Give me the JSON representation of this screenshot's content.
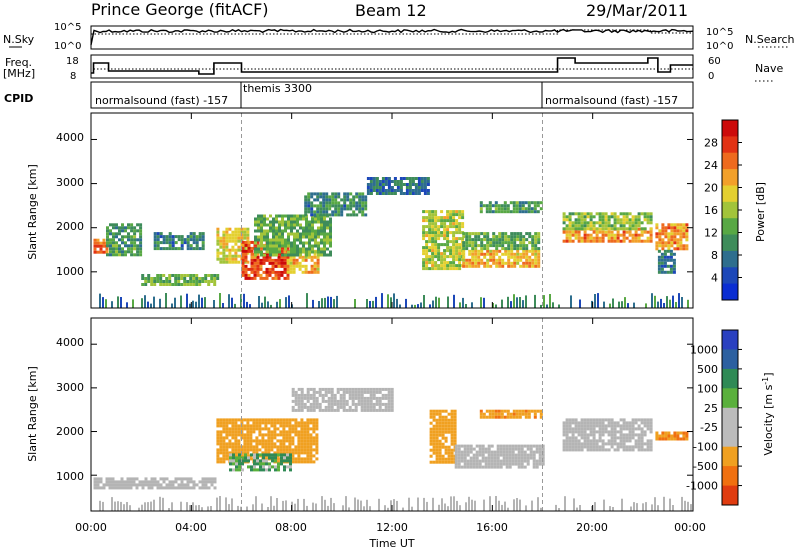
{
  "header": {
    "station": "Prince George (fitACF)",
    "beam": "Beam 12",
    "date": "29/Mar/2011"
  },
  "noise_panel": {
    "left_label": "N.Sky",
    "left_ticks": [
      "10^5",
      "10^0"
    ],
    "right_label": "N.Search",
    "right_ticks": [
      "10^5",
      "10^0"
    ]
  },
  "freq_panel": {
    "left_label_line1": "Freq.",
    "left_label_line2": "[MHz]",
    "left_ticks": [
      "18",
      "8"
    ],
    "right_label": "Nave",
    "right_ticks": [
      "60",
      "0"
    ]
  },
  "cpid_panel": {
    "label": "CPID",
    "segments": [
      {
        "name": "normalsound (fast) -157",
        "start_hour": 0.0
      },
      {
        "name": "themis 3300",
        "start_hour": 6.0
      },
      {
        "name": "normalsound (fast) -157",
        "start_hour": 18.0
      }
    ]
  },
  "power_panel": {
    "ylabel": "Slant Range [km]",
    "yticks": [
      "4000",
      "3000",
      "2000",
      "1000"
    ],
    "colorbar_label": "Power [dB]",
    "colorbar_ticks": [
      "28",
      "24",
      "20",
      "16",
      "12",
      "8",
      "4"
    ]
  },
  "velocity_panel": {
    "ylabel": "Slant Range [km]",
    "yticks": [
      "4000",
      "3000",
      "2000",
      "1000"
    ],
    "colorbar_label": "Velocity [m s^-1]",
    "colorbar_ticks": [
      "1000",
      "500",
      "100",
      "25",
      "-25",
      "-100",
      "-500",
      "-1000"
    ]
  },
  "xaxis": {
    "label": "Time UT",
    "ticks": [
      "00:00",
      "04:00",
      "08:00",
      "12:00",
      "16:00",
      "20:00",
      "00:00"
    ]
  },
  "colors": {
    "power_scale": [
      "#0a2dd2",
      "#1c47b8",
      "#2e6e8e",
      "#3e8c5a",
      "#58a844",
      "#a2c43a",
      "#e4d030",
      "#f2a02a",
      "#ee6a1e",
      "#e23214",
      "#cc0a0a"
    ],
    "velocity_scale": [
      "#2a40c0",
      "#2c60a0",
      "#2f8a55",
      "#5ab03c",
      "#bcbcbc",
      "#bcbcbc",
      "#f0a020",
      "#f07010",
      "#e03c10",
      "#d41010"
    ],
    "ground_scatter": "#b4b4b4"
  },
  "chart_data": {
    "type": "heatmap",
    "title": "Prince George (fitACF)  Beam 12  29/Mar/2011",
    "xlabel": "Time UT",
    "x_range_hours": [
      0,
      24
    ],
    "ylabel": "Slant Range [km]",
    "y_range_km": [
      180,
      4600
    ],
    "panels": [
      {
        "name": "Power",
        "units": "dB",
        "color_range": [
          0,
          30
        ],
        "regions": [
          {
            "t0": 0.1,
            "t1": 0.6,
            "r0": 1450,
            "r1": 1750,
            "value": 24
          },
          {
            "t0": 0.6,
            "t1": 2.0,
            "r0": 1400,
            "r1": 2100,
            "value": 10
          },
          {
            "t0": 2.0,
            "t1": 5.0,
            "r0": 700,
            "r1": 950,
            "value": 12
          },
          {
            "t0": 2.5,
            "t1": 4.5,
            "r0": 1550,
            "r1": 1900,
            "value": 8
          },
          {
            "t0": 5.0,
            "t1": 6.2,
            "r0": 1200,
            "r1": 2000,
            "value": 18
          },
          {
            "t0": 6.0,
            "t1": 7.8,
            "r0": 850,
            "r1": 1700,
            "value": 26
          },
          {
            "t0": 7.8,
            "t1": 9.0,
            "r0": 1000,
            "r1": 1500,
            "value": 20
          },
          {
            "t0": 6.5,
            "t1": 9.5,
            "r0": 1400,
            "r1": 2300,
            "value": 12
          },
          {
            "t0": 8.5,
            "t1": 11.0,
            "r0": 2300,
            "r1": 2800,
            "value": 8
          },
          {
            "t0": 11.0,
            "t1": 13.5,
            "r0": 2750,
            "r1": 3150,
            "value": 6
          },
          {
            "t0": 13.2,
            "t1": 14.8,
            "r0": 1100,
            "r1": 2400,
            "value": 16
          },
          {
            "t0": 14.8,
            "t1": 17.8,
            "r0": 1100,
            "r1": 1500,
            "value": 20
          },
          {
            "t0": 14.8,
            "t1": 17.8,
            "r0": 1500,
            "r1": 1900,
            "value": 12
          },
          {
            "t0": 15.5,
            "t1": 18.0,
            "r0": 2350,
            "r1": 2600,
            "value": 10
          },
          {
            "t0": 18.8,
            "t1": 22.3,
            "r0": 1700,
            "r1": 2000,
            "value": 22
          },
          {
            "t0": 18.8,
            "t1": 22.3,
            "r0": 2000,
            "r1": 2350,
            "value": 14
          },
          {
            "t0": 22.5,
            "t1": 23.8,
            "r0": 1500,
            "r1": 2100,
            "value": 22
          },
          {
            "t0": 22.6,
            "t1": 23.2,
            "r0": 1000,
            "r1": 1500,
            "value": 6
          }
        ]
      },
      {
        "name": "Velocity",
        "units": "m s^-1",
        "color_range": [
          -1000,
          1000
        ],
        "regions": [
          {
            "t0": 0.1,
            "t1": 5.0,
            "r0": 700,
            "r1": 950,
            "value": 0,
            "ground_scatter": true
          },
          {
            "t0": 5.0,
            "t1": 9.0,
            "r0": 1300,
            "r1": 2300,
            "value": -150
          },
          {
            "t0": 5.5,
            "t1": 8.0,
            "r0": 1100,
            "r1": 1500,
            "value": 80
          },
          {
            "t0": 8.0,
            "t1": 12.0,
            "r0": 2500,
            "r1": 3000,
            "value": 0,
            "ground_scatter": true
          },
          {
            "t0": 13.5,
            "t1": 14.5,
            "r0": 1300,
            "r1": 2500,
            "value": -200
          },
          {
            "t0": 14.5,
            "t1": 18.0,
            "r0": 1200,
            "r1": 1700,
            "value": 0,
            "ground_scatter": true
          },
          {
            "t0": 15.5,
            "t1": 18.0,
            "r0": 2300,
            "r1": 2500,
            "value": -250
          },
          {
            "t0": 18.8,
            "t1": 22.3,
            "r0": 1600,
            "r1": 2300,
            "value": 0,
            "ground_scatter": true
          },
          {
            "t0": 22.5,
            "t1": 23.8,
            "r0": 1800,
            "r1": 2000,
            "value": -300
          }
        ]
      }
    ]
  }
}
